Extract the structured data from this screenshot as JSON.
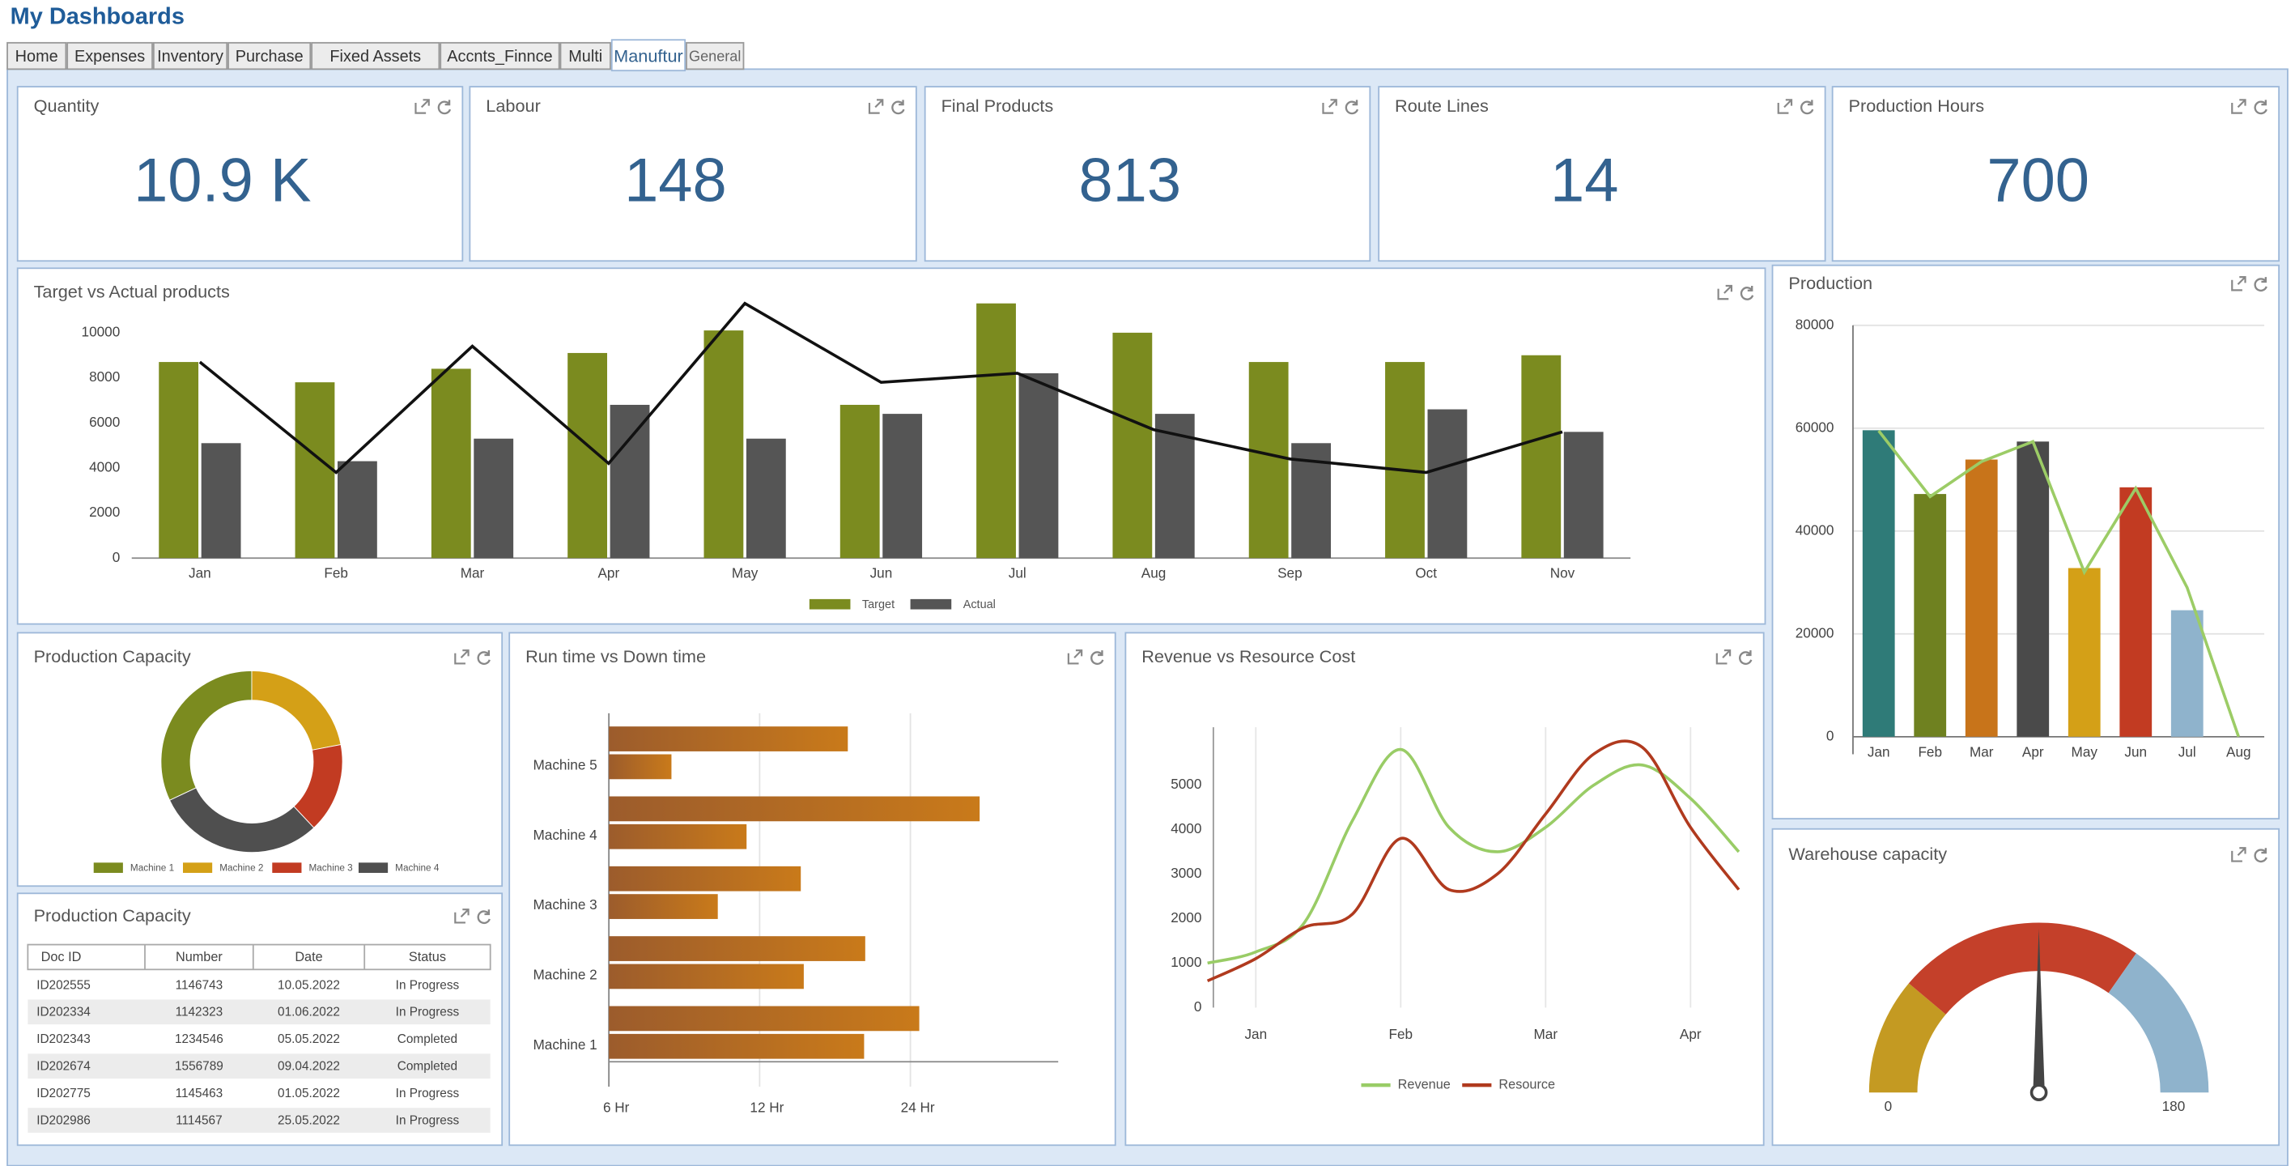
{
  "header": {
    "title": "My Dashboards"
  },
  "tabs": [
    "Home",
    "Expenses",
    "Inventory",
    "Purchase",
    "Fixed Assets",
    "Accnts_Finnce",
    "Multi",
    "Manuftur",
    "General"
  ],
  "active_tab": 7,
  "kpis": [
    {
      "title": "Quantity",
      "value": "10.9 K"
    },
    {
      "title": "Labour",
      "value": 148
    },
    {
      "title": "Final Products",
      "value": 813
    },
    {
      "title": "Route Lines",
      "value": 14
    },
    {
      "title": "Production Hours",
      "value": 700
    }
  ],
  "chart_data": [
    {
      "type": "bar",
      "title": "Target vs Actual products",
      "categories": [
        "Jan",
        "Feb",
        "Mar",
        "Apr",
        "May",
        "Jun",
        "Jul",
        "Aug",
        "Sep",
        "Oct",
        "Nov"
      ],
      "series": [
        {
          "name": "Target",
          "color": "#7b8b1f",
          "values": [
            8700,
            7800,
            8400,
            9100,
            10100,
            6800,
            11300,
            10000,
            8700,
            8700,
            9000
          ]
        },
        {
          "name": "Actual",
          "color": "#555555",
          "values": [
            5100,
            4300,
            5300,
            6800,
            5300,
            6400,
            8200,
            6400,
            5100,
            6600,
            5600
          ]
        },
        {
          "type": "line",
          "color": "#111111",
          "values": [
            8700,
            3800,
            9400,
            4200,
            11300,
            7800,
            8200,
            5700,
            4400,
            3800,
            5600
          ]
        }
      ],
      "ylim": [
        0,
        11600
      ],
      "yticks": [
        0,
        2000,
        4000,
        6000,
        8000,
        10000
      ],
      "legend": "bottom"
    },
    {
      "type": "bar",
      "title": "Production",
      "categories": [
        "Jan",
        "Feb",
        "Mar",
        "Apr",
        "May",
        "Jun",
        "Jul",
        "Aug"
      ],
      "series": [
        {
          "colors": [
            "#2f7b78",
            "#6f8120",
            "#c8741a",
            "#4a4a4a",
            "#d4a017",
            "#c23b22",
            "#8fb3cc",
            "#8fb3cc"
          ],
          "values": [
            59600,
            47200,
            53900,
            57400,
            32800,
            48500,
            24600,
            0
          ]
        },
        {
          "type": "line",
          "color": "#9ccc66",
          "values": [
            59500,
            46700,
            53500,
            57400,
            32000,
            48300,
            29000,
            0
          ]
        }
      ],
      "ylim": [
        0,
        80000
      ],
      "yticks": [
        0,
        20000,
        40000,
        60000,
        80000
      ],
      "grid": true
    },
    {
      "type": "donut",
      "title": "Production Capacity",
      "categories": [
        "Machine 1",
        "Machine 2",
        "Machine 3",
        "Machine 4"
      ],
      "values": [
        32,
        22,
        16,
        30
      ],
      "colors": [
        "#7b8b1f",
        "#d4a017",
        "#c23b22",
        "#4f4f4f"
      ],
      "legend": "bottom"
    },
    {
      "type": "hbar",
      "title": "Run time vs Down time",
      "categories": [
        "Machine 1",
        "Machine 2",
        "Machine 3",
        "Machine 4",
        "Machine 5"
      ],
      "series": [
        {
          "color": "#c97a1a",
          "values": [
            25,
            19.5,
            14.5,
            33,
            18
          ]
        },
        {
          "color": "#c97a1a",
          "values": [
            19.4,
            14.7,
            9.9,
            11.3,
            8
          ]
        }
      ],
      "xlim": [
        6,
        48
      ],
      "log_x": true,
      "xticks": [
        {
          "value": 6,
          "label": "6 Hr"
        },
        {
          "value": 12,
          "label": "12 Hr"
        },
        {
          "value": 24,
          "label": "24 Hr"
        }
      ],
      "grid": true
    },
    {
      "type": "line",
      "title": "Revenue vs Resource Cost",
      "categories": [
        null,
        "Jan",
        null,
        null,
        "Feb",
        null,
        null,
        "Mar",
        null,
        null,
        "Apr",
        null
      ],
      "series": [
        {
          "name": "Revenue",
          "color": "#99cc66",
          "values": [
            1000,
            1250,
            1900,
            4200,
            5800,
            4050,
            3500,
            4050,
            5000,
            5450,
            4700,
            3500
          ]
        },
        {
          "name": "Resource",
          "color": "#b03a1e",
          "values": [
            600,
            1100,
            1800,
            2100,
            3800,
            2650,
            3000,
            4350,
            5700,
            5850,
            4050,
            2650
          ]
        }
      ],
      "ylim": [
        0,
        6300
      ],
      "yticks": [
        0,
        1000,
        2000,
        3000,
        4000,
        5000
      ],
      "smooth": true,
      "grid": true,
      "legend": "bottom"
    },
    {
      "type": "gauge",
      "title": "Warehouse capacity",
      "range": [
        0,
        180
      ],
      "value": 90,
      "bands": [
        {
          "to": 40,
          "color": "#c49a22"
        },
        {
          "to": 125,
          "color": "#c4402a"
        },
        {
          "to": 180,
          "color": "#8fb3cc"
        }
      ]
    }
  ],
  "table": {
    "title": "Production Capacity",
    "columns": [
      "Doc ID",
      "Number",
      "Date",
      "Status"
    ],
    "rows": [
      [
        "ID202555",
        1146743,
        "10.05.2022",
        "In Progress"
      ],
      [
        "ID202334",
        1142323,
        "01.06.2022",
        "In Progress"
      ],
      [
        "ID202343",
        1234546,
        "05.05.2022",
        "Completed"
      ],
      [
        "ID202674",
        1556789,
        "09.04.2022",
        "Completed"
      ],
      [
        "ID202775",
        1145463,
        "01.05.2022",
        "In Progress"
      ],
      [
        "ID202986",
        1114567,
        "25.05.2022",
        "In Progress"
      ]
    ]
  }
}
